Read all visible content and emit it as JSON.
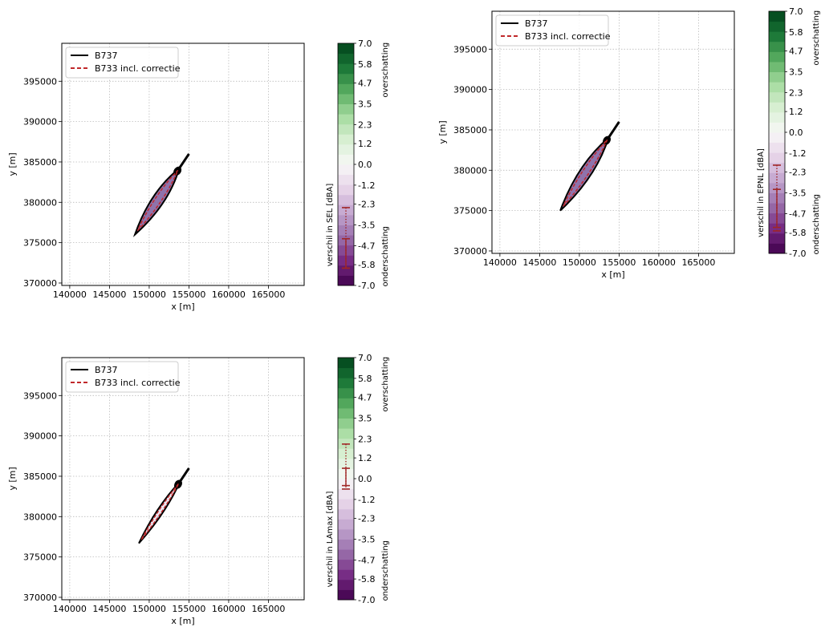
{
  "chart_data": [
    {
      "type": "contour",
      "xlabel": "x [m]",
      "ylabel": "y [m]",
      "xticks": [
        140000,
        145000,
        150000,
        155000,
        160000,
        165000
      ],
      "yticks": [
        370000,
        375000,
        380000,
        385000,
        390000,
        395000
      ],
      "xlim": [
        139000,
        169500
      ],
      "ylim": [
        369700,
        399700
      ],
      "grid": true,
      "legend_position": "upper-left",
      "legend": [
        {
          "name": "B737",
          "style": "solid",
          "color": "#000000"
        },
        {
          "name": "B733 incl. correctie",
          "style": "dashed",
          "color": "#c0282a"
        }
      ],
      "contour": {
        "tail": [
          148200,
          376000
        ],
        "head": [
          155000,
          386000
        ],
        "half_width": 650
      },
      "colorbar": {
        "label": "verschil in SEL [dBA]",
        "top_label": "overschatting",
        "bottom_label": "onderschatting",
        "ticks": [
          7.0,
          5.8,
          4.7,
          3.5,
          2.3,
          1.2,
          0.0,
          -1.2,
          -2.3,
          -3.5,
          -4.7,
          -5.8,
          -7.0
        ],
        "range": [
          -7.0,
          7.0
        ],
        "errorbars": [
          {
            "style": "dotted",
            "low": -6.0,
            "high": -2.5
          },
          {
            "style": "solid",
            "low": -6.0,
            "high": -4.3
          }
        ]
      }
    },
    {
      "type": "contour",
      "xlabel": "x [m]",
      "ylabel": "y [m]",
      "xticks": [
        140000,
        145000,
        150000,
        155000,
        160000,
        165000
      ],
      "yticks": [
        370000,
        375000,
        380000,
        385000,
        390000,
        395000
      ],
      "xlim": [
        139000,
        169500
      ],
      "ylim": [
        369700,
        399700
      ],
      "grid": true,
      "legend_position": "upper-left",
      "legend": [
        {
          "name": "B737",
          "style": "solid",
          "color": "#000000"
        },
        {
          "name": "B733 incl. correctie",
          "style": "dashed",
          "color": "#c0282a"
        }
      ],
      "contour": {
        "tail": [
          147600,
          375000
        ],
        "head": [
          155000,
          386000
        ],
        "half_width": 650
      },
      "colorbar": {
        "label": "verschil in EPNL [dBA]",
        "top_label": "overschatting",
        "bottom_label": "onderschatting",
        "ticks": [
          7.0,
          5.8,
          4.7,
          3.5,
          2.3,
          1.2,
          0.0,
          -1.2,
          -2.3,
          -3.5,
          -4.7,
          -5.8,
          -7.0
        ],
        "range": [
          -7.0,
          7.0
        ],
        "errorbars": [
          {
            "style": "dotted",
            "low": -5.7,
            "high": -1.9
          },
          {
            "style": "solid",
            "low": -5.5,
            "high": -3.3
          }
        ]
      }
    },
    {
      "type": "contour",
      "xlabel": "x [m]",
      "ylabel": "y [m]",
      "xticks": [
        140000,
        145000,
        150000,
        155000,
        160000,
        165000
      ],
      "yticks": [
        370000,
        375000,
        380000,
        385000,
        390000,
        395000
      ],
      "xlim": [
        139000,
        169500
      ],
      "ylim": [
        369700,
        399700
      ],
      "grid": true,
      "legend_position": "upper-left",
      "legend": [
        {
          "name": "B737",
          "style": "solid",
          "color": "#000000"
        },
        {
          "name": "B733 incl. correctie",
          "style": "dashed",
          "color": "#c0282a"
        }
      ],
      "contour": {
        "tail": [
          148700,
          376700
        ],
        "head": [
          155000,
          386000
        ],
        "half_width": 330
      },
      "colorbar": {
        "label": "verschil in LAmax [dBA]",
        "top_label": "overschatting",
        "bottom_label": "onderschatting",
        "ticks": [
          7.0,
          5.8,
          4.7,
          3.5,
          2.3,
          1.2,
          0.0,
          -1.2,
          -2.3,
          -3.5,
          -4.7,
          -5.8,
          -7.0
        ],
        "range": [
          -7.0,
          7.0
        ],
        "errorbars": [
          {
            "style": "dotted",
            "low": -0.6,
            "high": 2.0
          },
          {
            "style": "solid",
            "low": -0.4,
            "high": 0.6
          }
        ]
      }
    }
  ],
  "colors": {
    "grid": "#bbbbbb",
    "contour_line": "#000000",
    "corrected_line": "#c0282a",
    "errorbar": "#a02626",
    "fill": "#7b5a9e"
  }
}
